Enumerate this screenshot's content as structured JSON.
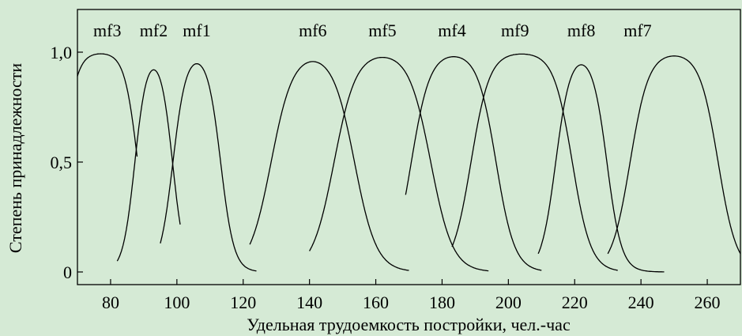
{
  "chart_data": {
    "type": "line",
    "xlabel": "Удельная трудоемкость постройки, чел.-час",
    "ylabel": "Степень принадлежности",
    "xlim": [
      70,
      270
    ],
    "ylim": [
      0,
      1.2
    ],
    "xticks": [
      {
        "value": 80,
        "label": "80"
      },
      {
        "value": 100,
        "label": "100"
      },
      {
        "value": 120,
        "label": "120"
      },
      {
        "value": 140,
        "label": "140"
      },
      {
        "value": 160,
        "label": "160"
      },
      {
        "value": 180,
        "label": "180"
      },
      {
        "value": 200,
        "label": "200"
      },
      {
        "value": 220,
        "label": "220"
      },
      {
        "value": 240,
        "label": "240"
      },
      {
        "value": 260,
        "label": "260"
      }
    ],
    "yticks": [
      {
        "value": 0,
        "label": "0"
      },
      {
        "value": 0.5,
        "label": "0,5"
      },
      {
        "value": 1.0,
        "label": "1,0"
      }
    ],
    "grid": false,
    "legend": "none",
    "line_color": "#000000",
    "background": "#d5ead5",
    "series": [
      {
        "name": "mf3",
        "label_x": 79,
        "support": [
          70,
          88
        ],
        "core": [
          71,
          83
        ],
        "spread": 2.0
      },
      {
        "name": "mf2",
        "label_x": 93,
        "support": [
          82,
          101
        ],
        "core": [
          92,
          94
        ],
        "spread": 1.8
      },
      {
        "name": "mf1",
        "label_x": 106,
        "support": [
          95,
          124
        ],
        "core": [
          104,
          108
        ],
        "spread": 2.0
      },
      {
        "name": "mf6",
        "label_x": 141,
        "support": [
          122,
          170
        ],
        "core": [
          137,
          145
        ],
        "spread": 3.3
      },
      {
        "name": "mf5",
        "label_x": 162,
        "support": [
          140,
          194
        ],
        "core": [
          156,
          168
        ],
        "spread": 3.3
      },
      {
        "name": "mf4",
        "label_x": 183,
        "support": [
          169,
          210
        ],
        "core": [
          178,
          189
        ],
        "spread": 2.8
      },
      {
        "name": "mf9",
        "label_x": 202,
        "support": [
          183,
          233
        ],
        "core": [
          196,
          212
        ],
        "spread": 2.8
      },
      {
        "name": "mf8",
        "label_x": 222,
        "support": [
          209,
          247
        ],
        "core": [
          220,
          224
        ],
        "spread": 2.2
      },
      {
        "name": "mf7",
        "label_x": 239,
        "support": [
          230,
          270
        ],
        "core": [
          244,
          256
        ],
        "spread": 2.8
      }
    ]
  }
}
